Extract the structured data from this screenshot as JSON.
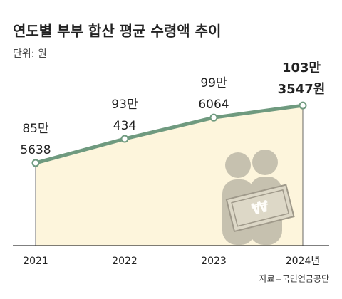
{
  "chart_data": {
    "type": "line",
    "title": "연도별 부부 합산 평균 수령액 추이",
    "unit": "단위: 원",
    "source": "자료=국민연금공단",
    "categories": [
      "2021",
      "2022",
      "2023",
      "2024년"
    ],
    "values": [
      855638,
      930434,
      996064,
      1033547
    ],
    "value_labels": [
      [
        "85만",
        "5638"
      ],
      [
        "93만",
        "434"
      ],
      [
        "99만",
        "6064"
      ],
      [
        "103만",
        "3547원"
      ]
    ],
    "color": "#6f9a7f",
    "area_color": "#fdf5dc",
    "ylim": [
      600000,
      1100000
    ]
  }
}
